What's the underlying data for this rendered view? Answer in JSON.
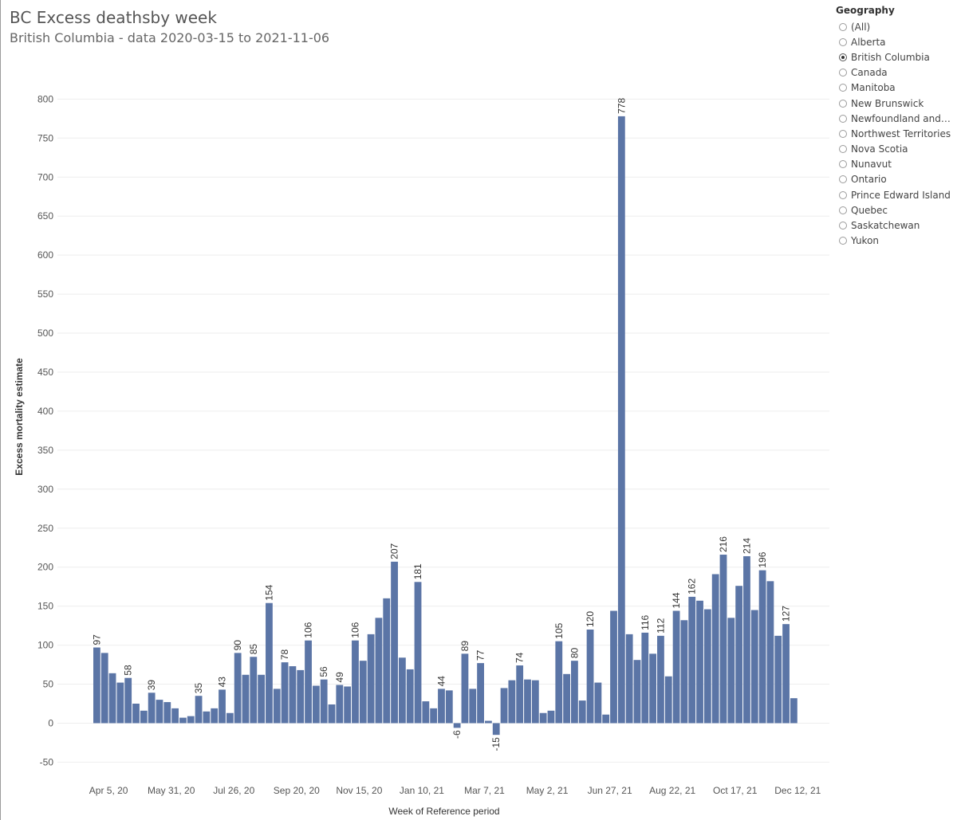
{
  "header": {
    "title": "BC Excess deathsby week",
    "subtitle": "British Columbia - data 2020-03-15 to 2021-11-06"
  },
  "legend": {
    "title": "Geography",
    "selected": "British Columbia",
    "items": [
      "(All)",
      "Alberta",
      "British Columbia",
      "Canada",
      "Manitoba",
      "New Brunswick",
      "Newfoundland and La...",
      "Northwest Territories",
      "Nova Scotia",
      "Nunavut",
      "Ontario",
      "Prince Edward Island",
      "Quebec",
      "Saskatchewan",
      "Yukon"
    ]
  },
  "colors": {
    "bar": "#5b75a6",
    "grid": "#eeeeee",
    "axis_text": "#555555"
  },
  "chart_data": {
    "type": "bar",
    "xlabel": "Week of Reference period",
    "ylabel": "Excess mortality estimate",
    "ylim": [
      -70,
      830
    ],
    "yticks": [
      800,
      750,
      700,
      650,
      600,
      550,
      500,
      450,
      400,
      350,
      300,
      250,
      200,
      150,
      100,
      50,
      0,
      -50
    ],
    "xticks": [
      {
        "label": "Apr 5, 20",
        "index": 1.5
      },
      {
        "label": "May 31, 20",
        "index": 9.5
      },
      {
        "label": "Jul 26, 20",
        "index": 17.5
      },
      {
        "label": "Sep 20, 20",
        "index": 25.5
      },
      {
        "label": "Nov 15, 20",
        "index": 33.5
      },
      {
        "label": "Jan 10, 21",
        "index": 41.5
      },
      {
        "label": "Mar 7, 21",
        "index": 49.5
      },
      {
        "label": "May 2, 21",
        "index": 57.5
      },
      {
        "label": "Jun 27, 21",
        "index": 65.5
      },
      {
        "label": "Aug 22, 21",
        "index": 73.5
      },
      {
        "label": "Oct 17, 21",
        "index": 81.5
      },
      {
        "label": "Dec 12, 21",
        "index": 89.5
      }
    ],
    "values": [
      97,
      90,
      64,
      52,
      58,
      25,
      16,
      39,
      30,
      27,
      19,
      7,
      9,
      35,
      15,
      19,
      43,
      13,
      90,
      62,
      85,
      62,
      154,
      44,
      78,
      73,
      68,
      106,
      48,
      56,
      24,
      49,
      47,
      106,
      80,
      114,
      135,
      160,
      207,
      84,
      69,
      181,
      28,
      19,
      44,
      42,
      -6,
      89,
      44,
      77,
      3,
      -15,
      45,
      55,
      74,
      56,
      55,
      13,
      16,
      105,
      63,
      80,
      29,
      120,
      52,
      11,
      144,
      778,
      114,
      81,
      116,
      89,
      112,
      60,
      144,
      132,
      162,
      157,
      146,
      191,
      216,
      135,
      176,
      214,
      145,
      196,
      182,
      112,
      127,
      32
    ],
    "labeled_indices": [
      0,
      4,
      7,
      13,
      16,
      18,
      20,
      22,
      24,
      27,
      29,
      31,
      33,
      38,
      41,
      44,
      46,
      47,
      49,
      51,
      54,
      59,
      61,
      63,
      67,
      70,
      72,
      74,
      76,
      80,
      83,
      85,
      88
    ]
  }
}
